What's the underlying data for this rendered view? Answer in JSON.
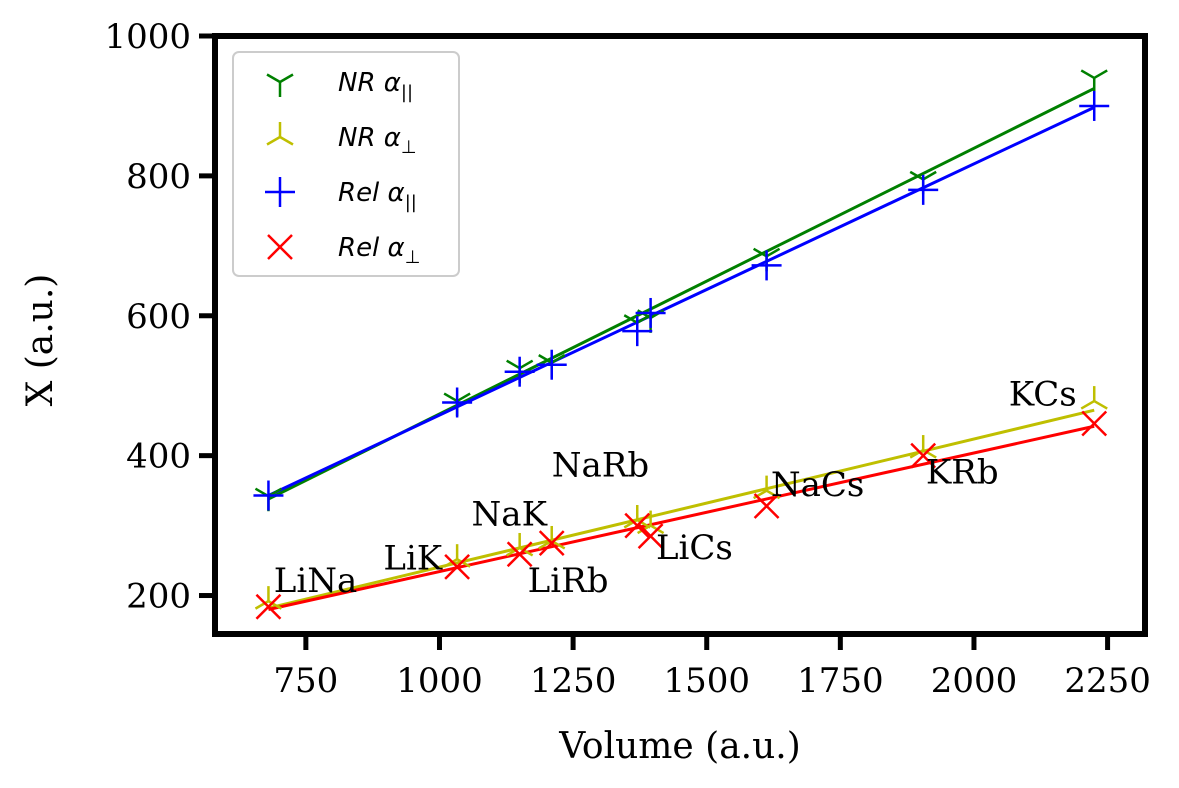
{
  "chart_data": {
    "type": "scatter",
    "title": "",
    "xlabel": "Volume (a.u.)",
    "ylabel": "X (a.u.)",
    "xlim": [
      580,
      2320
    ],
    "ylim": [
      145,
      1000
    ],
    "xticks": [
      750,
      1000,
      1250,
      1500,
      1750,
      2000,
      2250
    ],
    "yticks": [
      200,
      400,
      600,
      800,
      1000
    ],
    "xtick_labels": [
      "750",
      "1000",
      "1250",
      "1500",
      "1750",
      "2000",
      "2250"
    ],
    "ytick_labels": [
      "200",
      "400",
      "600",
      "800",
      "1000"
    ],
    "legend_position": "top-left",
    "x": [
      680,
      1033,
      1150,
      1210,
      1370,
      1395,
      1612,
      1905,
      2225
    ],
    "series": [
      {
        "name": "NR α||",
        "name_base": "NR α",
        "name_sub": "||",
        "color": "#008000",
        "marker": "tri-down",
        "values": [
          342,
          478,
          525,
          533,
          590,
          597,
          685,
          795,
          940
        ],
        "fit": [
          [
            680,
            338
          ],
          [
            2225,
            925
          ]
        ]
      },
      {
        "name": "NR α⊥",
        "name_base": "NR α",
        "name_sub": "⊥",
        "color": "#bfbf00",
        "marker": "tri-up",
        "values": [
          192,
          252,
          268,
          278,
          308,
          300,
          350,
          408,
          478
        ],
        "fit": [
          [
            680,
            182
          ],
          [
            2225,
            465
          ]
        ]
      },
      {
        "name": "Rel α||",
        "name_base": "Rel α",
        "name_sub": "||",
        "color": "#0000ff",
        "marker": "plus",
        "values": [
          343,
          476,
          520,
          530,
          578,
          604,
          672,
          780,
          900
        ],
        "fit": [
          [
            680,
            343
          ],
          [
            2225,
            898
          ]
        ]
      },
      {
        "name": "Rel α⊥",
        "name_base": "Rel α",
        "name_sub": "⊥",
        "color": "#ff0000",
        "marker": "x",
        "values": [
          184,
          241,
          259,
          275,
          300,
          285,
          328,
          400,
          446
        ],
        "fit": [
          [
            680,
            180
          ],
          [
            2225,
            442
          ]
        ]
      }
    ],
    "annotations": [
      {
        "text": "LiNa",
        "x": 690,
        "y": 205
      },
      {
        "text": "LiK",
        "x": 895,
        "y": 237
      },
      {
        "text": "NaK",
        "x": 1060,
        "y": 300
      },
      {
        "text": "LiRb",
        "x": 1165,
        "y": 205
      },
      {
        "text": "NaRb",
        "x": 1210,
        "y": 370
      },
      {
        "text": "LiCs",
        "x": 1405,
        "y": 252
      },
      {
        "text": "NaCs",
        "x": 1620,
        "y": 342
      },
      {
        "text": "KRb",
        "x": 1910,
        "y": 360
      },
      {
        "text": "KCs",
        "x": 2065,
        "y": 472
      }
    ]
  }
}
